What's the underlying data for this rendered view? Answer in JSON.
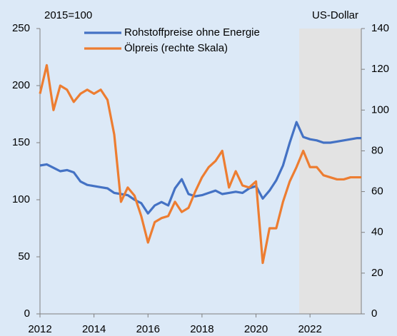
{
  "chart_data": {
    "type": "line",
    "left_label": "2015=100",
    "right_label": "US-Dollar",
    "x": [
      2012,
      2012.25,
      2012.5,
      2012.75,
      2013,
      2013.25,
      2013.5,
      2013.75,
      2014,
      2014.25,
      2014.5,
      2014.75,
      2015,
      2015.25,
      2015.5,
      2015.75,
      2016,
      2016.25,
      2016.5,
      2016.75,
      2017,
      2017.25,
      2017.5,
      2017.75,
      2018,
      2018.25,
      2018.5,
      2018.75,
      2019,
      2019.25,
      2019.5,
      2019.75,
      2020,
      2020.25,
      2020.5,
      2020.75,
      2021,
      2021.25,
      2021.5,
      2021.75,
      2022,
      2022.25,
      2022.5,
      2022.75,
      2023,
      2023.25,
      2023.5,
      2023.75,
      2023.9
    ],
    "series": [
      {
        "name": "Rohstoffpreise ohne Energie",
        "color": "#4472c4",
        "axis": "y",
        "values": [
          130,
          131,
          128,
          125,
          126,
          124,
          116,
          113,
          112,
          111,
          110,
          106,
          105,
          104,
          100,
          97,
          88,
          95,
          98,
          95,
          110,
          118,
          105,
          103,
          104,
          106,
          108,
          105,
          106,
          107,
          106,
          110,
          112,
          101,
          108,
          117,
          130,
          150,
          168,
          155,
          153,
          152,
          150,
          150,
          151,
          152,
          153,
          154,
          154
        ]
      },
      {
        "name": "Ölpreis (rechte Skala)",
        "color": "#ed7d31",
        "axis": "y2",
        "values": [
          108,
          122,
          100,
          112,
          110,
          104,
          108,
          110,
          108,
          110,
          105,
          88,
          55,
          62,
          58,
          48,
          35,
          45,
          47,
          48,
          55,
          50,
          52,
          60,
          67,
          72,
          75,
          80,
          62,
          70,
          63,
          62,
          65,
          25,
          42,
          42,
          55,
          65,
          72,
          80,
          72,
          72,
          68,
          67,
          66,
          66,
          67,
          67,
          67
        ]
      }
    ],
    "xlim": [
      2012,
      2023.9
    ],
    "xticks": [
      2012,
      2014,
      2016,
      2018,
      2020,
      2022
    ],
    "ylim": [
      0,
      250
    ],
    "yticks": [
      0,
      50,
      100,
      150,
      200,
      250
    ],
    "y2lim": [
      0,
      140
    ],
    "y2ticks": [
      0,
      20,
      40,
      60,
      80,
      100,
      120,
      140
    ],
    "shaded_x": [
      2021.6,
      2023.9
    ],
    "shade_color": "#e3e3e3",
    "grid": false
  }
}
